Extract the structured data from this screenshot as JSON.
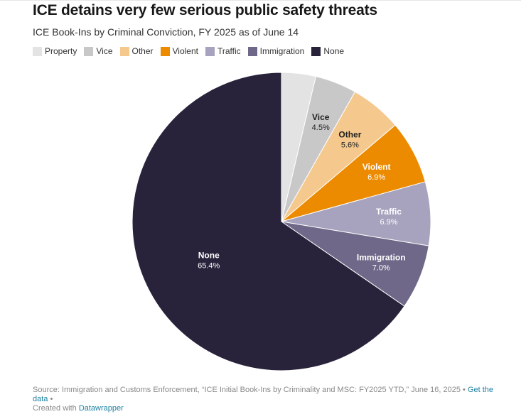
{
  "title": "ICE detains very few serious public safety threats",
  "subtitle": "ICE Book-Ins by Criminal Conviction, FY 2025 as of June 14",
  "footer": {
    "source": "Source: Immigration and Customs Enforcement, “ICE Initial Book-Ins by Criminality and MSC: FY2025 YTD,” June 16, 2025 • ",
    "get_data": "Get the data",
    "sep": " •",
    "created_with": "Created with ",
    "tool": "Datawrapper"
  },
  "chart_data": {
    "type": "pie",
    "legend_position": "top-left",
    "slices": [
      {
        "label": "Property",
        "value": 3.7,
        "value_label": "",
        "color": "#e3e3e3",
        "text_color": "#222222",
        "show_label": false
      },
      {
        "label": "Vice",
        "value": 4.5,
        "value_label": "4.5%",
        "color": "#c8c8c8",
        "text_color": "#222222",
        "show_label": true
      },
      {
        "label": "Other",
        "value": 5.6,
        "value_label": "5.6%",
        "color": "#f5c98e",
        "text_color": "#222222",
        "show_label": true
      },
      {
        "label": "Violent",
        "value": 6.9,
        "value_label": "6.9%",
        "color": "#ec8b00",
        "text_color": "#ffffff",
        "show_label": true
      },
      {
        "label": "Traffic",
        "value": 6.9,
        "value_label": "6.9%",
        "color": "#a7a2bd",
        "text_color": "#ffffff",
        "show_label": true
      },
      {
        "label": "Immigration",
        "value": 7.0,
        "value_label": "7.0%",
        "color": "#6f6888",
        "text_color": "#ffffff",
        "show_label": true
      },
      {
        "label": "None",
        "value": 65.4,
        "value_label": "65.4%",
        "color": "#28223a",
        "text_color": "#ffffff",
        "show_label": true
      }
    ]
  }
}
